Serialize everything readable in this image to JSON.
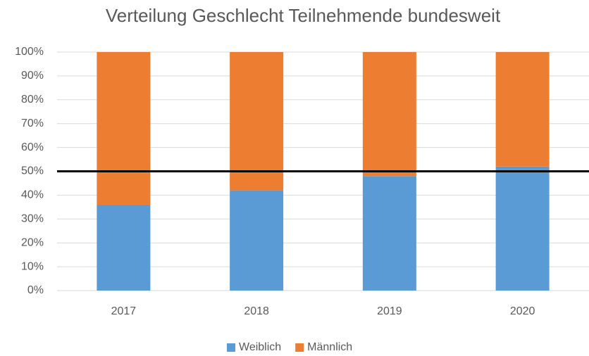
{
  "chart_data": {
    "type": "stacked_bar",
    "title": "Verteilung Geschlecht Teilnehmende bundesweit",
    "categories": [
      "2017",
      "2018",
      "2019",
      "2020"
    ],
    "series": [
      {
        "name": "Weiblich",
        "color": "#5b9bd5",
        "values": [
          36,
          42,
          48,
          52
        ]
      },
      {
        "name": "Männlich",
        "color": "#ed7d31",
        "values": [
          64,
          58,
          52,
          48
        ]
      }
    ],
    "ylim": [
      0,
      100
    ],
    "yticks": [
      {
        "value": 0,
        "label": "0%"
      },
      {
        "value": 10,
        "label": "10%"
      },
      {
        "value": 20,
        "label": "20%"
      },
      {
        "value": 30,
        "label": "30%"
      },
      {
        "value": 40,
        "label": "40%"
      },
      {
        "value": 50,
        "label": "50%"
      },
      {
        "value": 60,
        "label": "60%"
      },
      {
        "value": 70,
        "label": "70%"
      },
      {
        "value": 80,
        "label": "80%"
      },
      {
        "value": 90,
        "label": "90%"
      },
      {
        "value": 100,
        "label": "100%"
      }
    ],
    "grid": true,
    "reference_line": {
      "value": 50,
      "color": "#000000"
    },
    "legend": "bottom"
  }
}
